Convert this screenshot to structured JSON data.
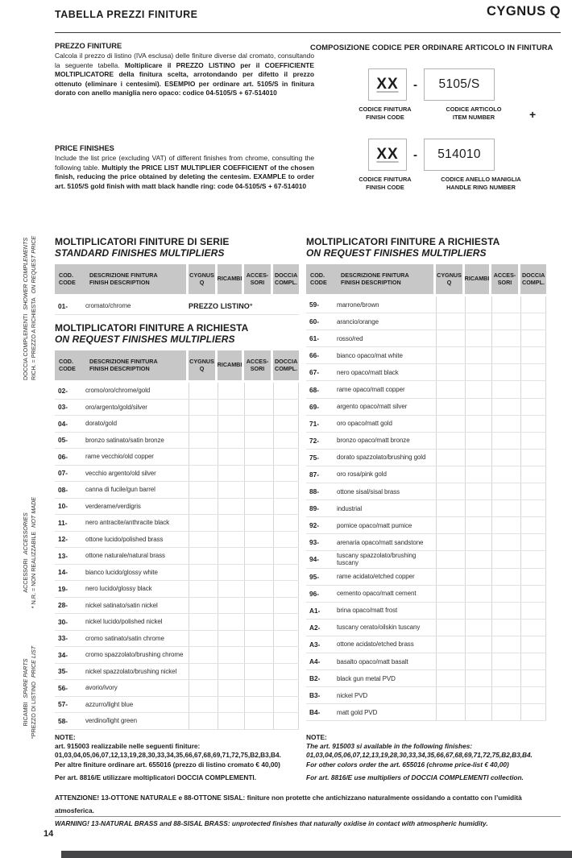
{
  "page": {
    "title": "TABELLA PREZZI FINITURE",
    "brand": "CYGNUS Q",
    "page_number": "14"
  },
  "intro_it": {
    "heading": "PREZZO FINITURE",
    "body_regular": "Calcola il prezzo di listino (IVA esclusa) delle finiture diverse dal cromato, consultando la seguente tabella. ",
    "body_bold": "Moltiplicare il PREZZO LISTINO per il COEFFICIENTE MOLTIPLICATORE della finitura scelta, arrotondando per difetto il prezzo ottenuto (eliminare i centesimi). ESEMPIO per ordinare art. 5105/S in finitura dorato con anello maniglia nero opaco: codice 04-5105/S + 67-514010"
  },
  "intro_en": {
    "heading": "PRICE FINISHES",
    "body_regular": "Include the list price (excluding VAT) of different finishes from chrome, consulting the following table. ",
    "body_bold": "Multiply the PRICE LIST MULTIPLIER COEFFICIENT of the chosen finish, reducing the price obtained by deleting the centesim. EXAMPLE to order art. 5105/S gold finish with matt black handle ring: code 04-5105/S + 67-514010"
  },
  "code_composition": {
    "title": "COMPOSIZIONE CODICE PER ORDINARE ARTICOLO IN FINITURA",
    "dash": "-",
    "plus": "+",
    "groups": [
      {
        "placeholder": "XX",
        "number": "5105/S",
        "label1_l1": "CODICE FINITURA",
        "label1_l2": "FINISH CODE",
        "label2_l1": "CODICE ARTICOLO",
        "label2_l2": "ITEM NUMBER"
      },
      {
        "placeholder": "XX",
        "number": "514010",
        "label1_l1": "CODICE FINITURA",
        "label1_l2": "FINISH CODE",
        "label2_l1": "CODICE ANELLO MANIGLIA",
        "label2_l2": "HANDLE RING NUMBER"
      }
    ]
  },
  "side_notes": [
    {
      "label_it": "DOCCIA COMPLEMENTI",
      "label_en": "SHOWER COMPLEMENTS",
      "note_it": "RICH. = PREZZO A RICHIESTA",
      "note_en": "ON REQUEST PRICE"
    },
    {
      "label_it": "ACCESSORI",
      "label_en": "ACCESSORIES",
      "note_it": "* N.R. = NON REALIZZABILE",
      "note_en": "NOT MADE"
    },
    {
      "label_it": "RICAMBI",
      "label_en": "SPARE PARTS",
      "note_it": "°PREZZO DI LISTINO",
      "note_en": "PRICE LIST"
    }
  ],
  "table_header": {
    "code_l1": "COD.",
    "code_l2": "CODE",
    "desc_l1": "DESCRIZIONE FINITURA",
    "desc_l2": "FINISH DESCRIPTION",
    "col_cygnus": "CYGNUS Q",
    "col_ricambi": "RICAMBI",
    "col_accessori": "ACCES- SORI",
    "col_doccia": "DOCCIA COMPL."
  },
  "standard_table": {
    "title_it": "MOLTIPLICATORI FINITURE DI SERIE",
    "title_en": "STANDARD FINISHES MULTIPLIERS",
    "row": {
      "code": "01-",
      "desc": "cromato/chrome",
      "value": "PREZZO LISTINO°"
    }
  },
  "request_table_left": {
    "title_it": "MOLTIPLICATORI FINITURE A RICHIESTA",
    "title_en": "ON REQUEST FINISHES MULTIPLIERS",
    "rows": [
      {
        "code": "02-",
        "desc": "cromo/oro/chrome/gold"
      },
      {
        "code": "03-",
        "desc": "oro/argento/gold/silver"
      },
      {
        "code": "04-",
        "desc": "dorato/gold"
      },
      {
        "code": "05-",
        "desc": "bronzo satinato/satin bronze"
      },
      {
        "code": "06-",
        "desc": "rame vecchio/old copper"
      },
      {
        "code": "07-",
        "desc": "vecchio argento/old silver"
      },
      {
        "code": "08-",
        "desc": "canna di fucile/gun barrel"
      },
      {
        "code": "10-",
        "desc": "verderame/verdigris"
      },
      {
        "code": "11-",
        "desc": "nero antracite/anthracite black"
      },
      {
        "code": "12-",
        "desc": "ottone lucido/polished brass"
      },
      {
        "code": "13-",
        "desc": "ottone naturale/natural brass"
      },
      {
        "code": "14-",
        "desc": "bianco lucido/glossy white"
      },
      {
        "code": "19-",
        "desc": "nero lucido/glossy black"
      },
      {
        "code": "28-",
        "desc": "nickel satinato/satin nickel"
      },
      {
        "code": "30-",
        "desc": "nickel lucido/polished nickel"
      },
      {
        "code": "33-",
        "desc": "cromo satinato/satin chrome"
      },
      {
        "code": "34-",
        "desc": "cromo spazzolato/brushing chrome"
      },
      {
        "code": "35-",
        "desc": "nickel spazzolato/brushing nickel"
      },
      {
        "code": "56-",
        "desc": "avorio/ivory"
      },
      {
        "code": "57-",
        "desc": "azzurro/light blue"
      },
      {
        "code": "58-",
        "desc": "verdino/light green"
      }
    ]
  },
  "request_table_right": {
    "title_it": "MOLTIPLICATORI FINITURE A RICHIESTA",
    "title_en": "ON REQUEST FINISHES MULTIPLIERS",
    "rows": [
      {
        "code": "59-",
        "desc": "marrone/brown"
      },
      {
        "code": "60-",
        "desc": "arancio/orange"
      },
      {
        "code": "61-",
        "desc": "rosso/red"
      },
      {
        "code": "66-",
        "desc": "bianco opaco/mat white"
      },
      {
        "code": "67-",
        "desc": "nero opaco/matt black"
      },
      {
        "code": "68-",
        "desc": "rame opaco/matt copper"
      },
      {
        "code": "69-",
        "desc": "argento opaco/matt silver"
      },
      {
        "code": "71-",
        "desc": "oro opaco/matt gold"
      },
      {
        "code": "72-",
        "desc": "bronzo opaco/matt bronze"
      },
      {
        "code": "75-",
        "desc": "dorato spazzolato/brushing gold"
      },
      {
        "code": "87-",
        "desc": "oro rosa/pink gold"
      },
      {
        "code": "88-",
        "desc": "ottone sisal/sisal brass"
      },
      {
        "code": "89-",
        "desc": "industrial"
      },
      {
        "code": "92-",
        "desc": "pomice opaco/matt pumice"
      },
      {
        "code": "93-",
        "desc": "arenaria opaco/matt sandstone"
      },
      {
        "code": "94-",
        "desc": "tuscany spazzolato/brushing tuscany"
      },
      {
        "code": "95-",
        "desc": "rame acidato/etched copper"
      },
      {
        "code": "96-",
        "desc": "cemento opaco/matt cement"
      },
      {
        "code": "A1-",
        "desc": "brina opaco/matt frost"
      },
      {
        "code": "A2-",
        "desc": "tuscany cerato/oilskin tuscany"
      },
      {
        "code": "A3-",
        "desc": "ottone acidato/etched brass"
      },
      {
        "code": "A4-",
        "desc": "basalto opaco/matt basalt"
      },
      {
        "code": "B2-",
        "desc": "black gun metal PVD"
      },
      {
        "code": "B3-",
        "desc": "nickel PVD"
      },
      {
        "code": "B4-",
        "desc": "matt gold PVD"
      }
    ]
  },
  "notes_it": {
    "heading": "NOTE:",
    "lines": [
      "art. 915003 realizzabile nelle seguenti finiture:",
      "01,03,04,05,06,07,12,13,19,28,30,33,34,35,66,67,68,69,71,72,75,B2,B3,B4.",
      "Per altre finiture ordinare art. 655016 (prezzo di listino cromato € 40,00)"
    ],
    "extra": "Per art. 8816/E utilizzare moltiplicatori DOCCIA COMPLEMENTI."
  },
  "notes_en": {
    "heading": "NOTE:",
    "lines": [
      "The art. 915003 si available in the following finishes:",
      "01,03,04,05,06,07,12,13,19,28,30,33,34,35,66,67,68,69,71,72,75,B2,B3,B4.",
      "For other colors order the art. 655016 (chrome price-list € 40,00)"
    ],
    "extra": "For art. 8816/E use multipliers of DOCCIA COMPLEMENTI collection."
  },
  "warning": {
    "it": "ATTENZIONE! 13-OTTONE NATURALE e 88-OTTONE SISAL: finiture non protette che antichizzano naturalmente ossidando a contatto con l’umidità atmosferica.",
    "en": "WARNING! 13-NATURAL BRASS and 88-SISAL BRASS: unprotected finishes that naturally oxidise in contact with atmospheric humidity."
  },
  "colors": {
    "table_header_grey": "#c7c7c7",
    "grid_line_grey": "#d6d6d6",
    "footer_bar": "#454548"
  }
}
